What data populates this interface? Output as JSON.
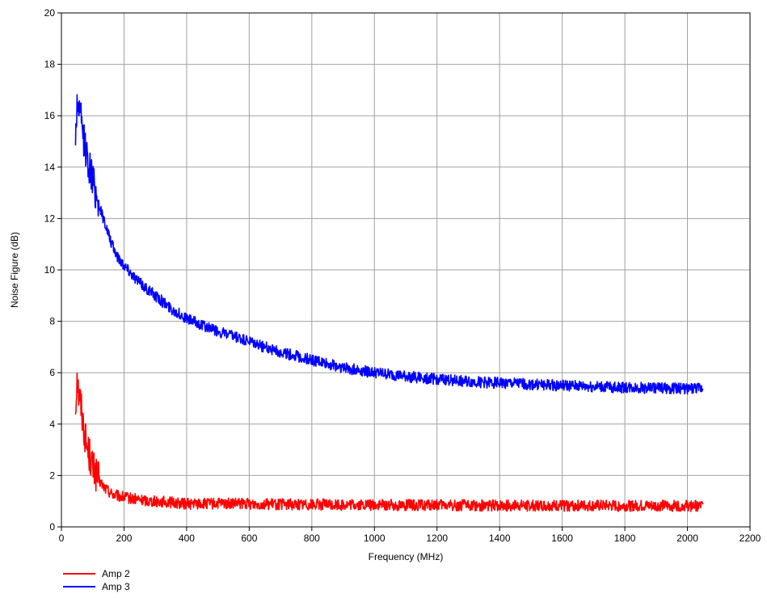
{
  "chart_data": {
    "type": "line",
    "title": "",
    "xlabel": "Frequency (MHz)",
    "ylabel": "Noise Figure (dB)",
    "xlim": [
      0,
      2200
    ],
    "ylim": [
      0,
      20
    ],
    "x_ticks": [
      "0",
      "200",
      "400",
      "600",
      "800",
      "1000",
      "1200",
      "1400",
      "1600",
      "1800",
      "2000",
      "2200"
    ],
    "y_ticks": [
      "0",
      "2",
      "4",
      "6",
      "8",
      "10",
      "12",
      "14",
      "16",
      "18",
      "20"
    ],
    "grid": true,
    "legend_position": "bottom-left",
    "series": [
      {
        "name": "Amp 2",
        "color": "#ff0000",
        "x": [
          45,
          50,
          55,
          60,
          70,
          80,
          90,
          100,
          120,
          140,
          160,
          180,
          200,
          250,
          300,
          350,
          400,
          500,
          600,
          700,
          800,
          900,
          1000,
          1100,
          1200,
          1300,
          1400,
          1500,
          1600,
          1700,
          1800,
          1900,
          2000,
          2050
        ],
        "y": [
          4.5,
          6.0,
          5.2,
          5.0,
          4.0,
          3.2,
          2.8,
          2.3,
          1.8,
          1.5,
          1.3,
          1.2,
          1.15,
          1.05,
          1.0,
          0.95,
          0.9,
          0.9,
          0.9,
          0.88,
          0.88,
          0.86,
          0.85,
          0.85,
          0.84,
          0.84,
          0.83,
          0.83,
          0.83,
          0.82,
          0.82,
          0.82,
          0.82,
          0.82
        ]
      },
      {
        "name": "Amp 3",
        "color": "#0000ff",
        "x": [
          45,
          50,
          55,
          60,
          70,
          80,
          100,
          120,
          140,
          160,
          180,
          200,
          250,
          300,
          350,
          400,
          500,
          600,
          700,
          800,
          900,
          1000,
          1100,
          1200,
          1300,
          1400,
          1500,
          1600,
          1700,
          1800,
          1900,
          2000,
          2050
        ],
        "y": [
          15.0,
          16.5,
          16.3,
          16.0,
          15.2,
          14.5,
          13.5,
          12.5,
          11.8,
          11.0,
          10.5,
          10.2,
          9.5,
          9.0,
          8.5,
          8.1,
          7.6,
          7.2,
          6.8,
          6.5,
          6.2,
          6.0,
          5.85,
          5.75,
          5.65,
          5.6,
          5.55,
          5.5,
          5.45,
          5.42,
          5.4,
          5.38,
          5.38
        ]
      }
    ]
  }
}
